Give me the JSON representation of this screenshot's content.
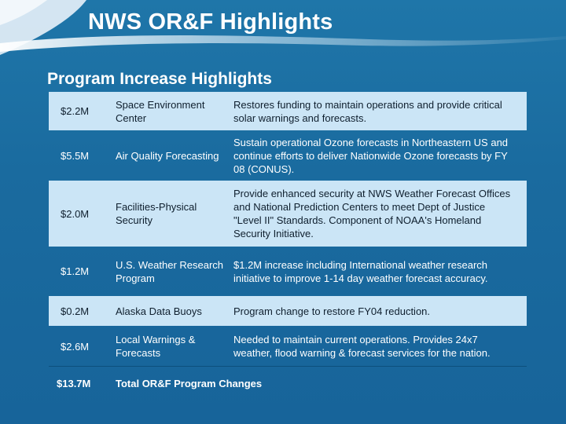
{
  "header": {
    "title": "NWS OR&F Highlights"
  },
  "section": {
    "title": "Program Increase Highlights"
  },
  "table": {
    "rows": [
      {
        "amount": "$2.2M",
        "program": "Space Environment Center",
        "description": "Restores funding to maintain operations and provide critical solar warnings and forecasts."
      },
      {
        "amount": "$5.5M",
        "program": "Air Quality Forecasting",
        "description": "Sustain operational Ozone forecasts in Northeastern US and continue  efforts to deliver Nationwide Ozone forecasts by FY 08 (CONUS)."
      },
      {
        "amount": "$2.0M",
        "program": "Facilities-Physical Security",
        "description": "Provide enhanced security at NWS Weather Forecast Offices and National Prediction Centers to meet Dept of Justice \"Level II\" Standards. Component of NOAA's Homeland Security Initiative."
      },
      {
        "amount": "$1.2M",
        "program": "U.S. Weather Research Program",
        "description": "$1.2M increase including International  weather research initiative to improve 1-14 day weather forecast accuracy."
      },
      {
        "amount": "$0.2M",
        "program": "Alaska Data Buoys",
        "description": "Program change to restore FY04 reduction."
      },
      {
        "amount": "$2.6M",
        "program": "Local Warnings & Forecasts",
        "description": "Needed to maintain current operations. Provides 24x7 weather, flood warning & forecast services for the nation."
      }
    ],
    "total": {
      "amount": "$13.7M",
      "label": "Total OR&F Program Changes"
    }
  }
}
